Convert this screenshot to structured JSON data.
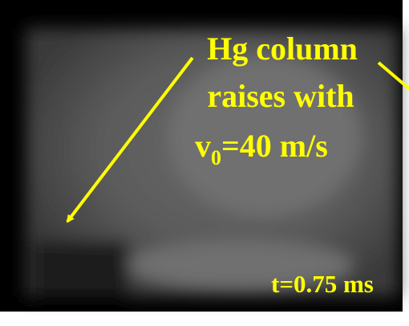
{
  "caption": {
    "lines": [
      "Hg column",
      "raises with"
    ],
    "velocity": {
      "symbol": "v",
      "subscript": "0",
      "rest": "=40 m/s"
    }
  },
  "timestamp": "t=0.75 ms"
}
